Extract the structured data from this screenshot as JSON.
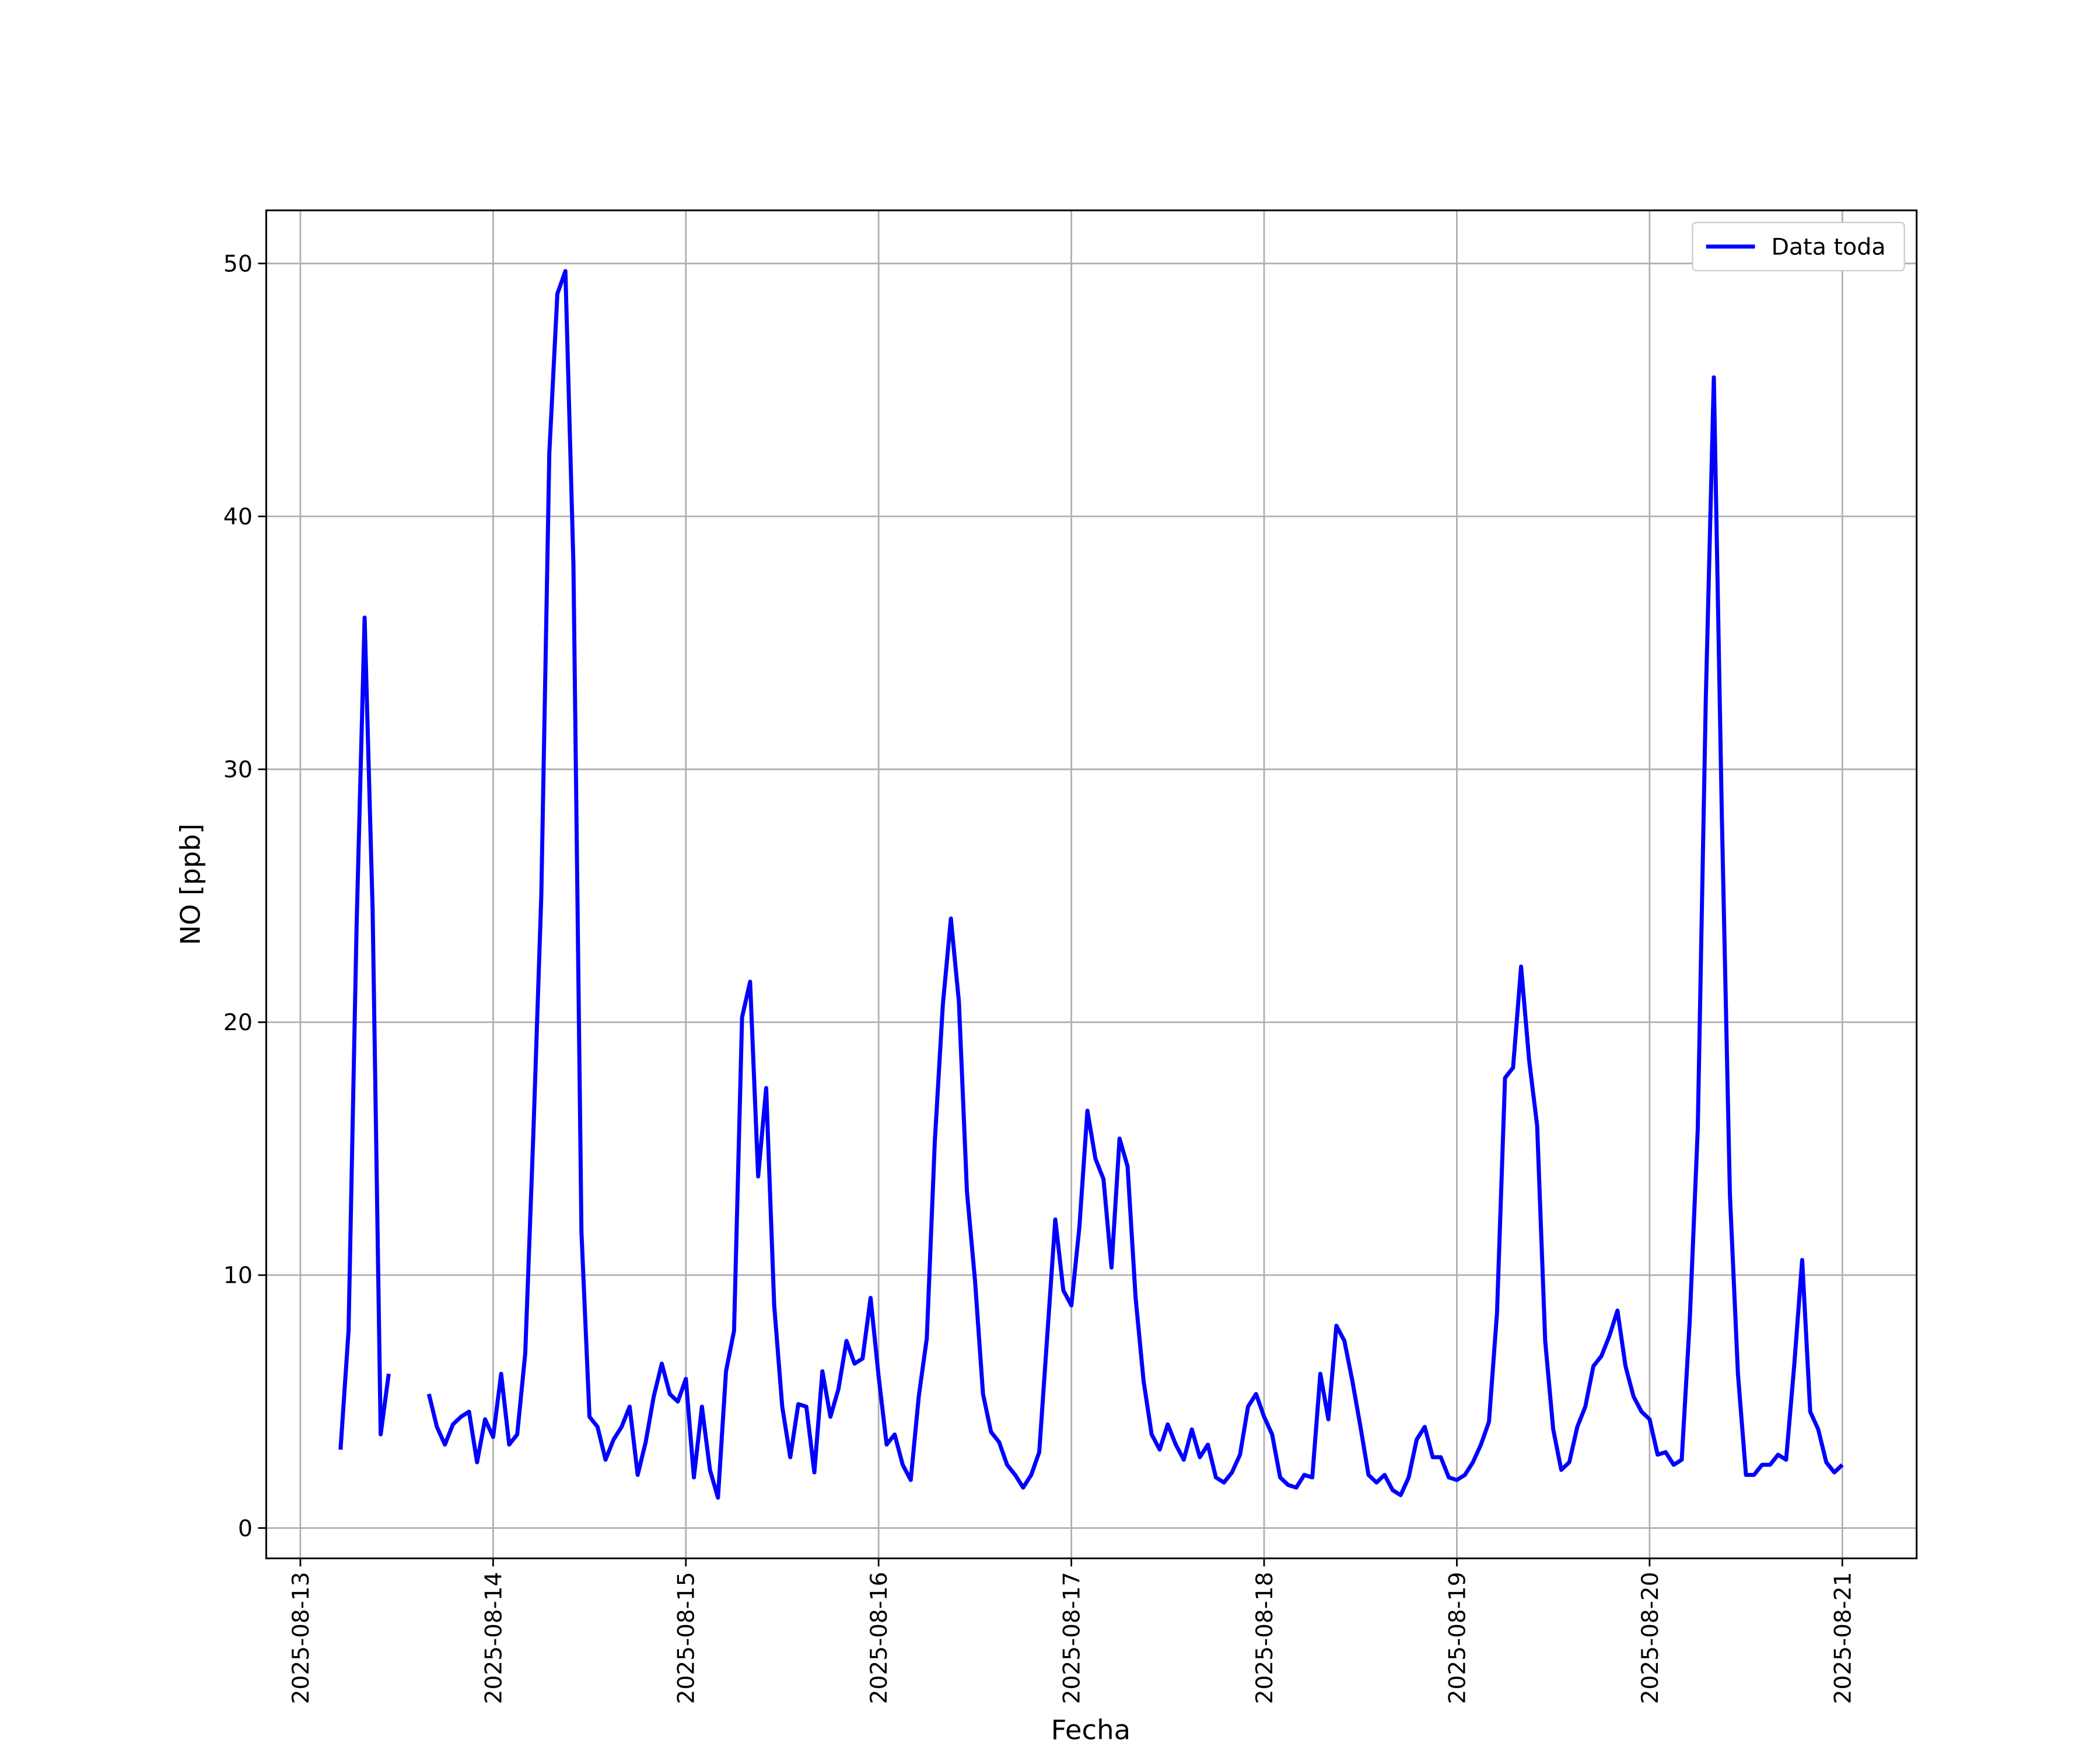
{
  "chart_data": {
    "type": "line",
    "x_label": "Fecha",
    "y_label": "NO [ppb]",
    "x": [
      "2025-08-13T05:00",
      "2025-08-13T06:00",
      "2025-08-13T07:00",
      "2025-08-13T08:00",
      "2025-08-13T09:00",
      "2025-08-13T10:00",
      "2025-08-13T11:00",
      "2025-08-13T12:00",
      "2025-08-13T13:00",
      "2025-08-13T14:00",
      "2025-08-13T15:00",
      "2025-08-13T16:00",
      "2025-08-13T17:00",
      "2025-08-13T18:00",
      "2025-08-13T19:00",
      "2025-08-13T20:00",
      "2025-08-13T21:00",
      "2025-08-13T22:00",
      "2025-08-13T23:00",
      "2025-08-14T00:00",
      "2025-08-14T01:00",
      "2025-08-14T02:00",
      "2025-08-14T03:00",
      "2025-08-14T04:00",
      "2025-08-14T05:00",
      "2025-08-14T06:00",
      "2025-08-14T07:00",
      "2025-08-14T08:00",
      "2025-08-14T09:00",
      "2025-08-14T10:00",
      "2025-08-14T11:00",
      "2025-08-14T12:00",
      "2025-08-14T13:00",
      "2025-08-14T14:00",
      "2025-08-14T15:00",
      "2025-08-14T16:00",
      "2025-08-14T17:00",
      "2025-08-14T18:00",
      "2025-08-14T19:00",
      "2025-08-14T20:00",
      "2025-08-14T21:00",
      "2025-08-14T22:00",
      "2025-08-14T23:00",
      "2025-08-15T00:00",
      "2025-08-15T01:00",
      "2025-08-15T02:00",
      "2025-08-15T03:00",
      "2025-08-15T04:00",
      "2025-08-15T05:00",
      "2025-08-15T06:00",
      "2025-08-15T07:00",
      "2025-08-15T08:00",
      "2025-08-15T09:00",
      "2025-08-15T10:00",
      "2025-08-15T11:00",
      "2025-08-15T12:00",
      "2025-08-15T13:00",
      "2025-08-15T14:00",
      "2025-08-15T15:00",
      "2025-08-15T16:00",
      "2025-08-15T17:00",
      "2025-08-15T18:00",
      "2025-08-15T19:00",
      "2025-08-15T20:00",
      "2025-08-15T21:00",
      "2025-08-15T22:00",
      "2025-08-15T23:00",
      "2025-08-16T00:00",
      "2025-08-16T01:00",
      "2025-08-16T02:00",
      "2025-08-16T03:00",
      "2025-08-16T04:00",
      "2025-08-16T05:00",
      "2025-08-16T06:00",
      "2025-08-16T07:00",
      "2025-08-16T08:00",
      "2025-08-16T09:00",
      "2025-08-16T10:00",
      "2025-08-16T11:00",
      "2025-08-16T12:00",
      "2025-08-16T13:00",
      "2025-08-16T14:00",
      "2025-08-16T15:00",
      "2025-08-16T16:00",
      "2025-08-16T17:00",
      "2025-08-16T18:00",
      "2025-08-16T19:00",
      "2025-08-16T20:00",
      "2025-08-16T21:00",
      "2025-08-16T22:00",
      "2025-08-16T23:00",
      "2025-08-17T00:00",
      "2025-08-17T01:00",
      "2025-08-17T02:00",
      "2025-08-17T03:00",
      "2025-08-17T04:00",
      "2025-08-17T05:00",
      "2025-08-17T06:00",
      "2025-08-17T07:00",
      "2025-08-17T08:00",
      "2025-08-17T09:00",
      "2025-08-17T10:00",
      "2025-08-17T11:00",
      "2025-08-17T12:00",
      "2025-08-17T13:00",
      "2025-08-17T14:00",
      "2025-08-17T15:00",
      "2025-08-17T16:00",
      "2025-08-17T17:00",
      "2025-08-17T18:00",
      "2025-08-17T19:00",
      "2025-08-17T20:00",
      "2025-08-17T21:00",
      "2025-08-17T22:00",
      "2025-08-17T23:00",
      "2025-08-18T00:00",
      "2025-08-18T01:00",
      "2025-08-18T02:00",
      "2025-08-18T03:00",
      "2025-08-18T04:00",
      "2025-08-18T05:00",
      "2025-08-18T06:00",
      "2025-08-18T07:00",
      "2025-08-18T08:00",
      "2025-08-18T09:00",
      "2025-08-18T10:00",
      "2025-08-18T11:00",
      "2025-08-18T12:00",
      "2025-08-18T13:00",
      "2025-08-18T14:00",
      "2025-08-18T15:00",
      "2025-08-18T16:00",
      "2025-08-18T17:00",
      "2025-08-18T18:00",
      "2025-08-18T19:00",
      "2025-08-18T20:00",
      "2025-08-18T21:00",
      "2025-08-18T22:00",
      "2025-08-18T23:00",
      "2025-08-19T00:00",
      "2025-08-19T01:00",
      "2025-08-19T02:00",
      "2025-08-19T03:00",
      "2025-08-19T04:00",
      "2025-08-19T05:00",
      "2025-08-19T06:00",
      "2025-08-19T07:00",
      "2025-08-19T08:00",
      "2025-08-19T09:00",
      "2025-08-19T10:00",
      "2025-08-19T11:00",
      "2025-08-19T12:00",
      "2025-08-19T13:00",
      "2025-08-19T14:00",
      "2025-08-19T15:00",
      "2025-08-19T16:00",
      "2025-08-19T17:00",
      "2025-08-19T18:00",
      "2025-08-19T19:00",
      "2025-08-19T20:00",
      "2025-08-19T21:00",
      "2025-08-19T22:00",
      "2025-08-19T23:00",
      "2025-08-20T00:00",
      "2025-08-20T01:00",
      "2025-08-20T02:00",
      "2025-08-20T03:00",
      "2025-08-20T04:00",
      "2025-08-20T05:00",
      "2025-08-20T06:00",
      "2025-08-20T07:00",
      "2025-08-20T08:00",
      "2025-08-20T09:00",
      "2025-08-20T10:00",
      "2025-08-20T11:00",
      "2025-08-20T12:00",
      "2025-08-20T13:00",
      "2025-08-20T14:00",
      "2025-08-20T15:00",
      "2025-08-20T16:00",
      "2025-08-20T17:00",
      "2025-08-20T18:00",
      "2025-08-20T19:00",
      "2025-08-20T20:00",
      "2025-08-20T21:00",
      "2025-08-20T22:00",
      "2025-08-20T23:00",
      "2025-08-21T00:00"
    ],
    "series": [
      {
        "name": "Data toda",
        "color": "#0000ff",
        "values": [
          3.1,
          7.8,
          23.8,
          36.0,
          24.4,
          3.7,
          6.1,
          null,
          null,
          null,
          null,
          5.3,
          4.0,
          3.3,
          4.1,
          4.4,
          4.6,
          2.6,
          4.3,
          3.6,
          6.1,
          3.3,
          3.7,
          6.9,
          15.5,
          25.0,
          42.5,
          48.8,
          49.7,
          38.1,
          11.7,
          4.4,
          4.0,
          2.7,
          3.5,
          4.0,
          4.8,
          2.1,
          3.4,
          5.2,
          6.5,
          5.3,
          5.0,
          5.9,
          2.0,
          4.8,
          2.3,
          1.2,
          6.2,
          7.8,
          20.2,
          21.6,
          13.9,
          17.4,
          8.8,
          4.8,
          2.8,
          4.9,
          4.8,
          2.2,
          6.2,
          4.4,
          5.5,
          7.4,
          6.5,
          6.7,
          9.1,
          6.0,
          3.3,
          3.7,
          2.5,
          1.9,
          5.2,
          7.5,
          15.3,
          20.7,
          24.1,
          20.8,
          13.3,
          9.8,
          5.3,
          3.8,
          3.4,
          2.5,
          2.1,
          1.6,
          2.1,
          3.0,
          7.6,
          12.2,
          9.4,
          8.8,
          11.9,
          16.5,
          14.6,
          13.8,
          10.3,
          15.4,
          14.3,
          9.1,
          5.8,
          3.7,
          3.1,
          4.1,
          3.3,
          2.7,
          3.9,
          2.8,
          3.3,
          2.0,
          1.8,
          2.2,
          2.9,
          4.8,
          5.3,
          4.4,
          3.7,
          2.0,
          1.7,
          1.6,
          2.1,
          2.0,
          6.1,
          4.3,
          8.0,
          7.4,
          5.8,
          4.0,
          2.1,
          1.8,
          2.1,
          1.5,
          1.3,
          2.0,
          3.5,
          4.0,
          2.8,
          2.8,
          2.0,
          1.9,
          2.1,
          2.6,
          3.3,
          4.2,
          8.5,
          17.8,
          18.2,
          22.2,
          18.5,
          15.9,
          7.4,
          3.9,
          2.3,
          2.6,
          4.0,
          4.8,
          6.4,
          6.8,
          7.6,
          8.6,
          6.4,
          5.2,
          4.6,
          4.3,
          2.9,
          3.0,
          2.5,
          2.7,
          8.2,
          15.8,
          32.8,
          45.5,
          28.1,
          13.2,
          6.1,
          2.1,
          2.1,
          2.5,
          2.5,
          2.9,
          2.7,
          6.4,
          10.6,
          4.6,
          3.9,
          2.6,
          2.2,
          2.5
        ]
      }
    ],
    "xlim": [
      "2025-08-12T19:45",
      "2025-08-21T09:15"
    ],
    "xticks": [
      "2025-08-13",
      "2025-08-14",
      "2025-08-15",
      "2025-08-16",
      "2025-08-17",
      "2025-08-18",
      "2025-08-19",
      "2025-08-20",
      "2025-08-21"
    ],
    "ylim": [
      -1.2,
      52.1
    ],
    "yticks": [
      0,
      10,
      20,
      30,
      40,
      50
    ],
    "grid": true,
    "legend": "upper right"
  }
}
